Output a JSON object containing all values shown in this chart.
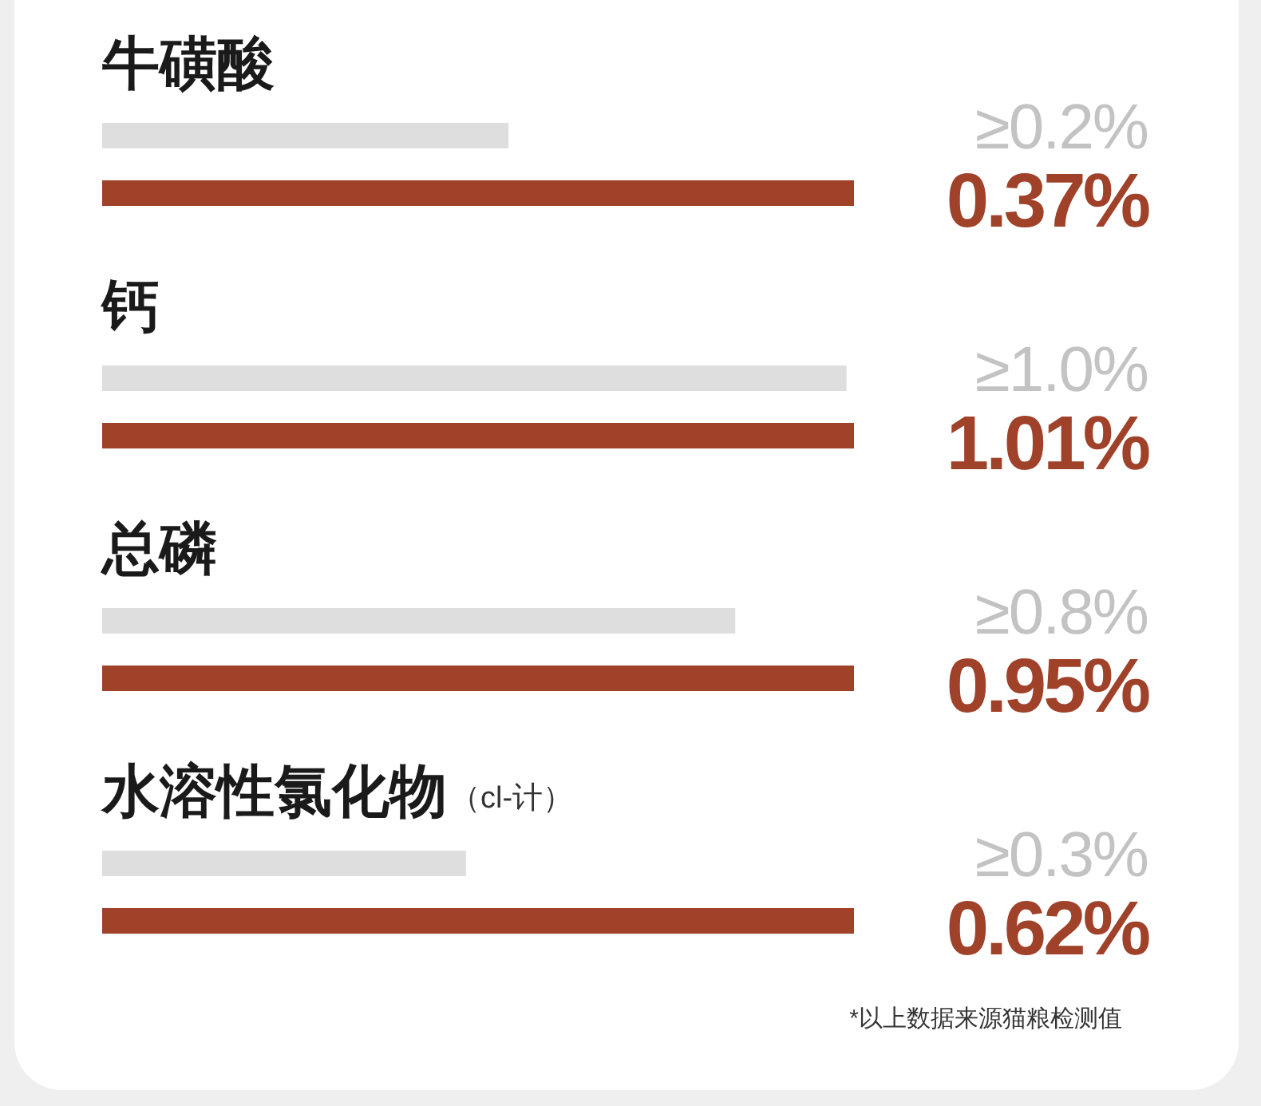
{
  "chart_data": [
    {
      "type": "bar",
      "orientation": "horizontal",
      "title": "牛磺酸",
      "categories": [
        null,
        null
      ],
      "values": [
        0.2,
        0.37
      ],
      "colors": [
        "#dedede",
        "#a0412a"
      ],
      "value_labels": [
        "≥0.2%",
        "0.37%"
      ]
    },
    {
      "type": "bar",
      "orientation": "horizontal",
      "title": "钙",
      "categories": [
        null,
        null
      ],
      "values": [
        1.0,
        1.01
      ],
      "colors": [
        "#dedede",
        "#a0412a"
      ],
      "value_labels": [
        "≥1.0%",
        "1.01%"
      ]
    },
    {
      "type": "bar",
      "orientation": "horizontal",
      "title": "总磷",
      "categories": [
        null,
        null
      ],
      "values": [
        0.8,
        0.95
      ],
      "colors": [
        "#dedede",
        "#a0412a"
      ],
      "value_labels": [
        "≥0.8%",
        "0.95%"
      ]
    },
    {
      "type": "bar",
      "orientation": "horizontal",
      "title": "水溶性氯化物",
      "subtitle": "（cl-计）",
      "categories": [
        null,
        null
      ],
      "values": [
        0.3,
        0.62
      ],
      "colors": [
        "#dedede",
        "#a0412a"
      ],
      "value_labels": [
        "≥0.3%",
        "0.62%"
      ],
      "annotations": [
        "*以上数据来源猫粮检测值"
      ]
    }
  ]
}
